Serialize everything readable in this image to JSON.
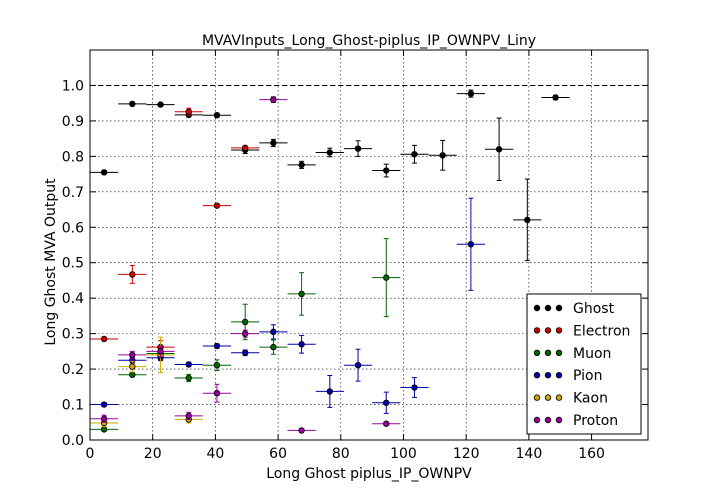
{
  "chart_data": {
    "type": "scatter",
    "title": "MVAVInputs_Long_Ghost-piplus_IP_OWNPV_Liny",
    "xlabel": "Long Ghost piplus_IP_OWNPV",
    "ylabel": "Long Ghost MVA Output",
    "xlim": [
      0,
      178
    ],
    "ylim": [
      0,
      1.1
    ],
    "xticks": [
      0,
      20,
      40,
      60,
      80,
      100,
      120,
      140,
      160
    ],
    "yticks": [
      0.0,
      0.1,
      0.2,
      0.3,
      0.4,
      0.5,
      0.6,
      0.7,
      0.8,
      0.9,
      1.0
    ],
    "xtick_labels": [
      "0",
      "20",
      "40",
      "60",
      "80",
      "100",
      "120",
      "140",
      "160"
    ],
    "ytick_labels": [
      "0.0",
      "0.1",
      "0.2",
      "0.3",
      "0.4",
      "0.5",
      "0.6",
      "0.7",
      "0.8",
      "0.9",
      "1.0"
    ],
    "reference_line": 1.0,
    "grid": true,
    "legend_position": "bottom-right",
    "xerr": 4.5,
    "series": [
      {
        "name": "Ghost",
        "color": "#000000",
        "points": [
          [
            4.5,
            0.755,
            0.005
          ],
          [
            13.5,
            0.948,
            0.005
          ],
          [
            22.5,
            0.946,
            0.005
          ],
          [
            31.5,
            0.917,
            0.006
          ],
          [
            40.5,
            0.916,
            0.006
          ],
          [
            49.5,
            0.818,
            0.01
          ],
          [
            58.5,
            0.838,
            0.01
          ],
          [
            67.5,
            0.776,
            0.01
          ],
          [
            76.5,
            0.811,
            0.012
          ],
          [
            85.5,
            0.822,
            0.022
          ],
          [
            94.5,
            0.76,
            0.018
          ],
          [
            103.5,
            0.806,
            0.025
          ],
          [
            112.5,
            0.803,
            0.042
          ],
          [
            121.5,
            0.977,
            0.01
          ],
          [
            130.5,
            0.82,
            0.088
          ],
          [
            139.5,
            0.621,
            0.115
          ],
          [
            148.5,
            0.966,
            0.006
          ]
        ]
      },
      {
        "name": "Electron",
        "color": "#cc0000",
        "points": [
          [
            4.5,
            0.285,
            0.005
          ],
          [
            13.5,
            0.467,
            0.025
          ],
          [
            22.5,
            0.262,
            0.018
          ],
          [
            31.5,
            0.926,
            0.01
          ],
          [
            40.5,
            0.661,
            0.005
          ],
          [
            49.5,
            0.824,
            0.005
          ]
        ]
      },
      {
        "name": "Muon",
        "color": "#006600",
        "points": [
          [
            4.5,
            0.03,
            0.005
          ],
          [
            13.5,
            0.184,
            0.006
          ],
          [
            22.5,
            0.244,
            0.01
          ],
          [
            31.5,
            0.175,
            0.01
          ],
          [
            40.5,
            0.211,
            0.015
          ],
          [
            49.5,
            0.333,
            0.05
          ],
          [
            58.5,
            0.262,
            0.02
          ],
          [
            67.5,
            0.412,
            0.06
          ],
          [
            94.5,
            0.458,
            0.11
          ]
        ]
      },
      {
        "name": "Pion",
        "color": "#0000aa",
        "points": [
          [
            4.5,
            0.1,
            0.005
          ],
          [
            13.5,
            0.225,
            0.008
          ],
          [
            22.5,
            0.232,
            0.008
          ],
          [
            31.5,
            0.213,
            0.006
          ],
          [
            40.5,
            0.265,
            0.006
          ],
          [
            49.5,
            0.246,
            0.008
          ],
          [
            58.5,
            0.305,
            0.02
          ],
          [
            67.5,
            0.27,
            0.025
          ],
          [
            76.5,
            0.137,
            0.045
          ],
          [
            85.5,
            0.211,
            0.045
          ],
          [
            94.5,
            0.105,
            0.03
          ],
          [
            103.5,
            0.148,
            0.028
          ],
          [
            121.5,
            0.552,
            0.13
          ]
        ]
      },
      {
        "name": "Kaon",
        "color": "#ccaa00",
        "points": [
          [
            4.5,
            0.048,
            0.01
          ],
          [
            13.5,
            0.207,
            0.015
          ],
          [
            22.5,
            0.24,
            0.05
          ],
          [
            31.5,
            0.058,
            0.01
          ]
        ]
      },
      {
        "name": "Proton",
        "color": "#990099",
        "points": [
          [
            4.5,
            0.06,
            0.01
          ],
          [
            13.5,
            0.24,
            0.01
          ],
          [
            22.5,
            0.25,
            0.015
          ],
          [
            31.5,
            0.068,
            0.01
          ],
          [
            40.5,
            0.132,
            0.025
          ],
          [
            49.5,
            0.3,
            0.01
          ],
          [
            58.5,
            0.96,
            0.008
          ],
          [
            67.5,
            0.027,
            0.004
          ],
          [
            94.5,
            0.046,
            0.004
          ]
        ]
      }
    ]
  }
}
